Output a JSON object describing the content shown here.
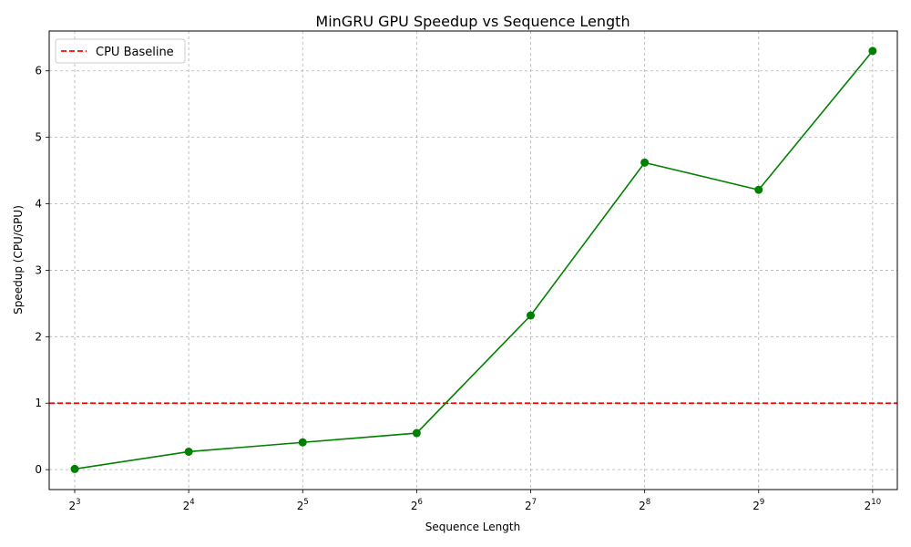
{
  "chart_data": {
    "type": "line",
    "title": "MinGRU GPU Speedup vs Sequence Length",
    "xlabel": "Sequence Length",
    "ylabel": "Speedup (CPU/GPU)",
    "x_scale": "log2",
    "x_ticks": [
      {
        "base": "2",
        "exp": "3",
        "value": 8
      },
      {
        "base": "2",
        "exp": "4",
        "value": 16
      },
      {
        "base": "2",
        "exp": "5",
        "value": 32
      },
      {
        "base": "2",
        "exp": "6",
        "value": 64
      },
      {
        "base": "2",
        "exp": "7",
        "value": 128
      },
      {
        "base": "2",
        "exp": "8",
        "value": 256
      },
      {
        "base": "2",
        "exp": "9",
        "value": 512
      },
      {
        "base": "2",
        "exp": "10",
        "value": 1024
      }
    ],
    "xlim": [
      6.85,
      1190
    ],
    "ylim": [
      -0.3,
      6.6
    ],
    "y_ticks": [
      {
        "value": 0,
        "label": "0"
      },
      {
        "value": 1,
        "label": "1"
      },
      {
        "value": 2,
        "label": "2"
      },
      {
        "value": 3,
        "label": "3"
      },
      {
        "value": 4,
        "label": "4"
      },
      {
        "value": 5,
        "label": "5"
      },
      {
        "value": 6,
        "label": "6"
      }
    ],
    "grid": true,
    "series": [
      {
        "color": "#008000",
        "marker": "circle",
        "x": [
          8,
          16,
          32,
          64,
          128,
          256,
          512,
          1024
        ],
        "y": [
          0.01,
          0.27,
          0.41,
          0.55,
          2.32,
          4.62,
          4.21,
          6.3
        ]
      }
    ],
    "baseline": {
      "name": "CPU Baseline",
      "y": 1,
      "color": "#ff0000",
      "style": "dashed"
    },
    "legend": {
      "placement": "top-left",
      "entries": [
        "CPU Baseline"
      ]
    }
  }
}
